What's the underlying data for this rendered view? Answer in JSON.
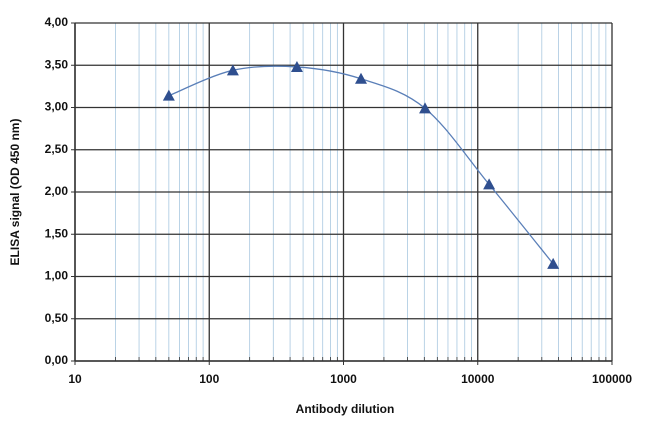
{
  "chart_data": {
    "type": "scatter",
    "xscale": "log",
    "grid": true,
    "x_label": "Antibody dilution",
    "y_label": "ELISA signal (OD 450 nm)",
    "x": [
      50,
      150,
      450,
      1350,
      4050,
      12150,
      36450
    ],
    "series": [
      {
        "color": "#2f4f8f",
        "line_color": "#5a7fb8",
        "values": [
          3.14,
          3.44,
          3.48,
          3.34,
          2.99,
          2.09,
          1.15
        ]
      }
    ],
    "xlim": [
      10,
      100000
    ],
    "xticks": [
      10,
      100,
      1000,
      10000,
      100000
    ],
    "ylim": [
      0,
      4
    ],
    "yticks": [
      {
        "value": 0,
        "label": "0,00"
      },
      {
        "value": 0.5,
        "label": "0,50"
      },
      {
        "value": 1,
        "label": "1,00"
      },
      {
        "value": 1.5,
        "label": "1,50"
      },
      {
        "value": 2,
        "label": "2,00"
      },
      {
        "value": 2.5,
        "label": "2,50"
      },
      {
        "value": 3,
        "label": "3,00"
      },
      {
        "value": 3.5,
        "label": "3,50"
      },
      {
        "value": 4,
        "label": "4,00"
      }
    ]
  }
}
